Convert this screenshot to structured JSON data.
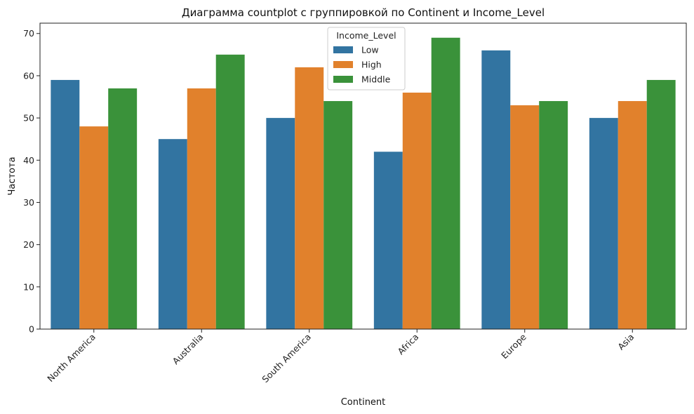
{
  "chart_data": {
    "type": "bar",
    "title": "Диаграмма countplot с группировкой по Continent и Income_Level",
    "xlabel": "Continent",
    "ylabel": "Частота",
    "categories": [
      "North America",
      "Australia",
      "South America",
      "Africa",
      "Europe",
      "Asia"
    ],
    "series": [
      {
        "name": "Low",
        "color": "#3274a1",
        "values": [
          59,
          45,
          50,
          42,
          66,
          50
        ]
      },
      {
        "name": "High",
        "color": "#e1812c",
        "values": [
          48,
          57,
          62,
          56,
          53,
          54
        ]
      },
      {
        "name": "Middle",
        "color": "#3a923a",
        "values": [
          57,
          65,
          54,
          69,
          54,
          59
        ]
      }
    ],
    "ylim": [
      0,
      72.45
    ],
    "yticks": [
      0,
      10,
      20,
      30,
      40,
      50,
      60,
      70
    ],
    "legend": {
      "title": "Income_Level",
      "placement": "upper center"
    },
    "grid": false
  }
}
